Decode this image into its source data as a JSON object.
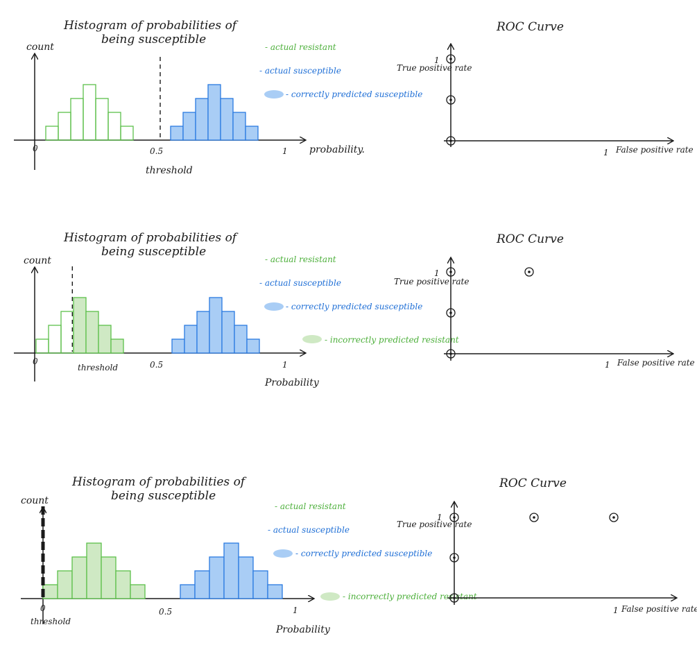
{
  "colors": {
    "ink": "#1a1a1a",
    "resistant_outline": "#5cbf4a",
    "resistant_fill": "#cfe9c4",
    "susceptible_outline": "#2a7ae0",
    "susceptible_fill": "#a9cdf5"
  },
  "panels": [
    {
      "histogram": {
        "title_line1": "Histogram of probabilities of",
        "title_line2": "being susceptible",
        "ylabel": "count",
        "xlabel": "probability.",
        "tick_zero": "0",
        "tick_mid": "0.5",
        "tick_one": "1",
        "threshold_label": "threshold",
        "threshold_value": 0.5,
        "resistant_filled": false,
        "legend": {
          "actual_resistant": "- actual resistant",
          "actual_susceptible": "- actual susceptible",
          "correctly_predicted_susceptible": "- correctly predicted susceptible",
          "incorrectly_predicted_resistant": ""
        }
      },
      "roc": {
        "title": "ROC Curve",
        "ylabel": "True positive rate",
        "xlabel": "False positive rate",
        "tick_one_y": "1",
        "tick_one_x": "1",
        "points": [
          {
            "fpr": 0,
            "tpr": 0
          },
          {
            "fpr": 0,
            "tpr": 0.5
          },
          {
            "fpr": 0,
            "tpr": 1
          }
        ]
      }
    },
    {
      "histogram": {
        "title_line1": "Histogram of probabilities of",
        "title_line2": "being susceptible",
        "ylabel": "count",
        "xlabel": "Probability",
        "tick_zero": "0",
        "tick_mid": "0.5",
        "tick_one": "1",
        "threshold_label": "threshold",
        "threshold_value": 0.15,
        "resistant_filled": true,
        "legend": {
          "actual_resistant": "- actual resistant",
          "actual_susceptible": "- actual susceptible",
          "correctly_predicted_susceptible": "- correctly predicted susceptible",
          "incorrectly_predicted_resistant": "- incorrectly predicted resistant"
        }
      },
      "roc": {
        "title": "ROC Curve",
        "ylabel": "True positive rate",
        "xlabel": "False positive rate",
        "tick_one_y": "1",
        "tick_one_x": "1",
        "points": [
          {
            "fpr": 0,
            "tpr": 0
          },
          {
            "fpr": 0,
            "tpr": 0.5
          },
          {
            "fpr": 0,
            "tpr": 1
          },
          {
            "fpr": 0.5,
            "tpr": 1
          }
        ]
      }
    },
    {
      "histogram": {
        "title_line1": "Histogram of probabilities of",
        "title_line2": "being susceptible",
        "ylabel": "count",
        "xlabel": "Probability",
        "tick_zero": "0",
        "tick_mid": "0.5",
        "tick_one": "1",
        "threshold_label": "threshold",
        "threshold_value": 0.0,
        "resistant_filled": true,
        "legend": {
          "actual_resistant": "- actual resistant",
          "actual_susceptible": "- actual susceptible",
          "correctly_predicted_susceptible": "- correctly predicted susceptible",
          "incorrectly_predicted_resistant": "- incorrectly predicted resistant"
        }
      },
      "roc": {
        "title": "ROC Curve",
        "ylabel": "True positive rate",
        "xlabel": "False positive rate",
        "tick_one_y": "1",
        "tick_one_x": "1",
        "points": [
          {
            "fpr": 0,
            "tpr": 0
          },
          {
            "fpr": 0,
            "tpr": 0.5
          },
          {
            "fpr": 0,
            "tpr": 1
          },
          {
            "fpr": 0.5,
            "tpr": 1
          },
          {
            "fpr": 1,
            "tpr": 1
          }
        ]
      }
    }
  ],
  "histogram_bins": {
    "resistant_counts": [
      1,
      2,
      3,
      4,
      3,
      2,
      1
    ],
    "susceptible_counts": [
      1,
      2,
      3,
      4,
      3,
      2,
      1
    ]
  }
}
